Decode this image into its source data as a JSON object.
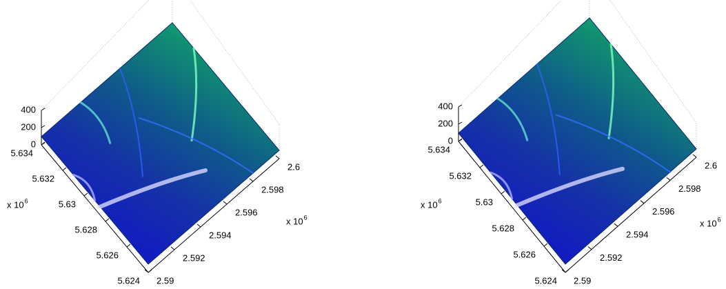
{
  "chart_data": [
    {
      "type": "surface",
      "zlim": [
        0,
        400
      ],
      "zticks": [
        0,
        200,
        400
      ],
      "ylim": [
        5.624,
        5.634
      ],
      "yticks": [
        5.624,
        5.626,
        5.628,
        5.63,
        5.632,
        5.634
      ],
      "xlim": [
        2.59,
        2.6
      ],
      "xticks": [
        2.59,
        2.592,
        2.594,
        2.596,
        2.598,
        2.6
      ],
      "y_multiplier": {
        "base": "x 10",
        "exponent": "6"
      },
      "x_multiplier": {
        "base": "x 10",
        "exponent": "6"
      }
    },
    {
      "type": "surface",
      "zlim": [
        0,
        400
      ],
      "zticks": [
        0,
        200,
        400
      ],
      "ylim": [
        5.624,
        5.634
      ],
      "yticks": [
        5.624,
        5.626,
        5.628,
        5.63,
        5.632,
        5.634
      ],
      "xlim": [
        2.59,
        2.6
      ],
      "xticks": [
        2.59,
        2.592,
        2.594,
        2.596,
        2.598,
        2.6
      ],
      "y_multiplier": {
        "base": "x 10",
        "exponent": "6"
      },
      "x_multiplier": {
        "base": "x 10",
        "exponent": "6"
      }
    }
  ]
}
